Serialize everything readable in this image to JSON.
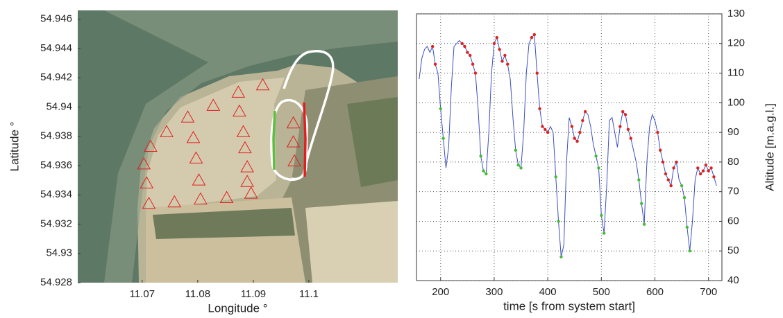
{
  "chart_data": [
    {
      "type": "scatter",
      "xlabel": "Longitude °",
      "ylabel": "Latitude °",
      "xlim": [
        11.0584,
        11.116
      ],
      "ylim": [
        54.928,
        54.9466
      ],
      "xticks": [
        11.07,
        11.08,
        11.09,
        11.1
      ],
      "yticks": [
        54.928,
        54.93,
        54.932,
        54.934,
        54.936,
        54.938,
        54.94,
        54.942,
        54.944,
        54.946
      ],
      "grid": false,
      "series": [
        {
          "color": "#e02020",
          "marker": "triangle",
          "x": [
            11.0917,
            11.0873,
            11.0828,
            11.0875,
            11.0782,
            11.0744,
            11.0882,
            11.0715,
            11.0792,
            11.0885,
            11.0703,
            11.0797,
            11.0889,
            11.0708,
            11.0802,
            11.0889,
            11.0712,
            11.0758,
            11.0805,
            11.0852,
            11.0896,
            11.0972,
            11.0972,
            11.0974
          ],
          "values": [
            54.9415,
            54.941,
            54.9401,
            54.9397,
            54.9393,
            54.9383,
            54.9383,
            54.9373,
            54.9379,
            54.9372,
            54.9361,
            54.9365,
            54.9359,
            54.9348,
            54.935,
            54.9349,
            54.9334,
            54.9335,
            54.9337,
            54.9338,
            54.9341,
            54.9389,
            54.9376,
            54.9363
          ]
        }
      ]
    },
    {
      "type": "line",
      "xlabel": "time [s from system start]",
      "ylabel": "Altitude [m.a.g.l.]",
      "xlim": [
        155,
        725
      ],
      "ylim": [
        40,
        130
      ],
      "xticks": [
        200,
        300,
        400,
        500,
        600,
        700
      ],
      "yticks": [
        40,
        50,
        60,
        70,
        80,
        90,
        100,
        110,
        120,
        130
      ],
      "grid": true,
      "yaxis": "right",
      "series": [
        {
          "color": "#3a4fc0",
          "mode": "line",
          "x": [
            160,
            165,
            170,
            175,
            180,
            185,
            190,
            195,
            200,
            205,
            210,
            215,
            220,
            225,
            230,
            235,
            240,
            245,
            250,
            255,
            260,
            265,
            270,
            275,
            280,
            285,
            290,
            295,
            300,
            305,
            310,
            315,
            320,
            325,
            330,
            335,
            340,
            345,
            350,
            355,
            360,
            365,
            370,
            375,
            380,
            385,
            390,
            395,
            400,
            405,
            410,
            415,
            420,
            425,
            430,
            435,
            440,
            445,
            450,
            455,
            460,
            465,
            470,
            475,
            480,
            485,
            490,
            495,
            500,
            505,
            510,
            515,
            520,
            525,
            530,
            535,
            540,
            545,
            550,
            555,
            560,
            565,
            570,
            575,
            580,
            585,
            590,
            595,
            600,
            605,
            610,
            615,
            620,
            625,
            630,
            635,
            640,
            645,
            650,
            655,
            660,
            665,
            670,
            675,
            680,
            685,
            690,
            695,
            700,
            705,
            710,
            715
          ],
          "values": [
            108,
            115,
            118,
            119,
            117,
            119,
            113,
            110,
            98,
            88,
            78,
            85,
            105,
            119,
            120,
            121,
            120,
            119,
            117,
            116,
            113,
            110,
            98,
            82,
            77,
            76,
            90,
            110,
            120,
            122,
            118,
            114,
            116,
            113,
            108,
            95,
            84,
            79,
            78,
            90,
            110,
            120,
            122,
            123,
            110,
            98,
            92,
            91,
            90,
            92,
            90,
            75,
            60,
            48,
            52,
            80,
            95,
            92,
            88,
            87,
            90,
            94,
            97,
            96,
            92,
            86,
            82,
            78,
            62,
            56,
            72,
            94,
            95,
            90,
            85,
            92,
            97,
            96,
            91,
            88,
            84,
            80,
            74,
            66,
            59,
            80,
            92,
            96,
            94,
            90,
            84,
            80,
            76,
            74,
            72,
            78,
            80,
            74,
            72,
            68,
            58,
            50,
            60,
            74,
            78,
            76,
            77,
            79,
            77,
            78,
            75,
            72
          ]
        },
        {
          "color": "#e02020",
          "mode": "markers",
          "x": [
            185,
            190,
            240,
            245,
            250,
            255,
            260,
            265,
            300,
            305,
            310,
            315,
            320,
            325,
            370,
            375,
            380,
            385,
            390,
            395,
            400,
            445,
            450,
            455,
            460,
            465,
            470,
            535,
            540,
            545,
            550,
            555,
            605,
            610,
            615,
            620,
            625,
            630,
            635,
            640,
            680,
            685,
            690,
            695,
            700,
            705,
            710
          ],
          "values": [
            119,
            113,
            120,
            119,
            117,
            116,
            113,
            110,
            120,
            122,
            118,
            114,
            116,
            113,
            122,
            123,
            110,
            98,
            92,
            91,
            90,
            92,
            88,
            87,
            90,
            94,
            97,
            92,
            97,
            96,
            91,
            88,
            90,
            84,
            80,
            76,
            74,
            72,
            78,
            80,
            78,
            76,
            77,
            79,
            77,
            78,
            75
          ]
        },
        {
          "color": "#44bb33",
          "mode": "markers",
          "x": [
            200,
            205,
            275,
            280,
            285,
            340,
            345,
            350,
            415,
            420,
            425,
            490,
            495,
            500,
            505,
            570,
            575,
            580,
            650,
            655,
            660,
            665
          ],
          "values": [
            98,
            88,
            82,
            77,
            76,
            84,
            79,
            78,
            75,
            60,
            48,
            82,
            78,
            62,
            56,
            74,
            66,
            59,
            72,
            68,
            58,
            50
          ]
        }
      ]
    }
  ]
}
